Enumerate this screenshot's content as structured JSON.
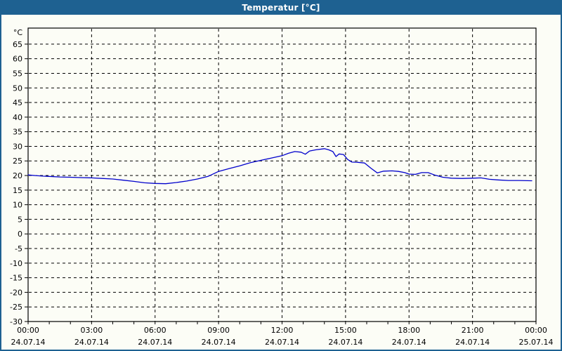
{
  "window": {
    "title": "Temperatur [°C]"
  },
  "colors": {
    "titlebar_bg": "#1E6191",
    "titlebar_text": "#FFFFFF",
    "window_border": "#1E6191",
    "content_bg": "#FCFDF6",
    "grid": "#000000",
    "axis": "#000000",
    "line": "#0000CC"
  },
  "chart_data": {
    "type": "line",
    "title": "Temperatur [°C]",
    "y_unit_label": "°C",
    "xlim_hours": [
      0,
      24
    ],
    "ylim": [
      -30,
      70.5
    ],
    "grid": true,
    "grid_style": "dashed",
    "legend_position": "none",
    "y_ticks": [
      65,
      60,
      55,
      50,
      45,
      40,
      35,
      30,
      25,
      20,
      15,
      10,
      5,
      0,
      -5,
      -10,
      -15,
      -20,
      -25,
      -30
    ],
    "x_minor_tick_every_hours": 1,
    "x_ticks": [
      {
        "hour": 0,
        "time": "00:00",
        "date": "24.07.14"
      },
      {
        "hour": 3,
        "time": "03:00",
        "date": "24.07.14"
      },
      {
        "hour": 6,
        "time": "06:00",
        "date": "24.07.14"
      },
      {
        "hour": 9,
        "time": "09:00",
        "date": "24.07.14"
      },
      {
        "hour": 12,
        "time": "12:00",
        "date": "24.07.14"
      },
      {
        "hour": 15,
        "time": "15:00",
        "date": "24.07.14"
      },
      {
        "hour": 18,
        "time": "18:00",
        "date": "24.07.14"
      },
      {
        "hour": 21,
        "time": "21:00",
        "date": "24.07.14"
      },
      {
        "hour": 24,
        "time": "00:00",
        "date": "25.07.14"
      }
    ],
    "series": [
      {
        "name": "Temperatur",
        "color": "#0000CC",
        "points": [
          [
            0.0,
            20.2
          ],
          [
            0.3,
            20.0
          ],
          [
            0.7,
            19.8
          ],
          [
            1.0,
            19.7
          ],
          [
            1.5,
            19.5
          ],
          [
            2.0,
            19.4
          ],
          [
            2.5,
            19.3
          ],
          [
            3.0,
            19.2
          ],
          [
            3.5,
            19.0
          ],
          [
            4.0,
            18.8
          ],
          [
            4.5,
            18.4
          ],
          [
            5.0,
            18.0
          ],
          [
            5.5,
            17.5
          ],
          [
            6.0,
            17.3
          ],
          [
            6.5,
            17.2
          ],
          [
            7.0,
            17.6
          ],
          [
            7.5,
            18.1
          ],
          [
            8.0,
            18.8
          ],
          [
            8.5,
            19.7
          ],
          [
            9.0,
            21.4
          ],
          [
            9.5,
            22.4
          ],
          [
            10.0,
            23.3
          ],
          [
            10.5,
            24.4
          ],
          [
            11.0,
            25.2
          ],
          [
            11.5,
            26.0
          ],
          [
            12.0,
            26.8
          ],
          [
            12.3,
            27.6
          ],
          [
            12.6,
            28.2
          ],
          [
            12.9,
            28.0
          ],
          [
            13.1,
            27.3
          ],
          [
            13.3,
            28.4
          ],
          [
            13.6,
            28.8
          ],
          [
            14.0,
            29.2
          ],
          [
            14.2,
            28.8
          ],
          [
            14.4,
            28.2
          ],
          [
            14.55,
            26.5
          ],
          [
            14.7,
            27.4
          ],
          [
            14.9,
            27.2
          ],
          [
            15.1,
            25.5
          ],
          [
            15.3,
            24.6
          ],
          [
            15.6,
            24.5
          ],
          [
            15.9,
            24.3
          ],
          [
            16.2,
            22.5
          ],
          [
            16.5,
            20.9
          ],
          [
            16.8,
            21.5
          ],
          [
            17.2,
            21.6
          ],
          [
            17.5,
            21.4
          ],
          [
            17.8,
            21.0
          ],
          [
            18.0,
            20.5
          ],
          [
            18.3,
            20.4
          ],
          [
            18.6,
            21.0
          ],
          [
            18.9,
            21.0
          ],
          [
            19.2,
            20.2
          ],
          [
            19.6,
            19.4
          ],
          [
            20.0,
            19.1
          ],
          [
            20.5,
            19.0
          ],
          [
            21.0,
            19.1
          ],
          [
            21.4,
            19.2
          ],
          [
            21.8,
            18.7
          ],
          [
            22.2,
            18.5
          ],
          [
            22.7,
            18.3
          ],
          [
            23.2,
            18.3
          ],
          [
            23.8,
            18.2
          ]
        ]
      }
    ]
  }
}
